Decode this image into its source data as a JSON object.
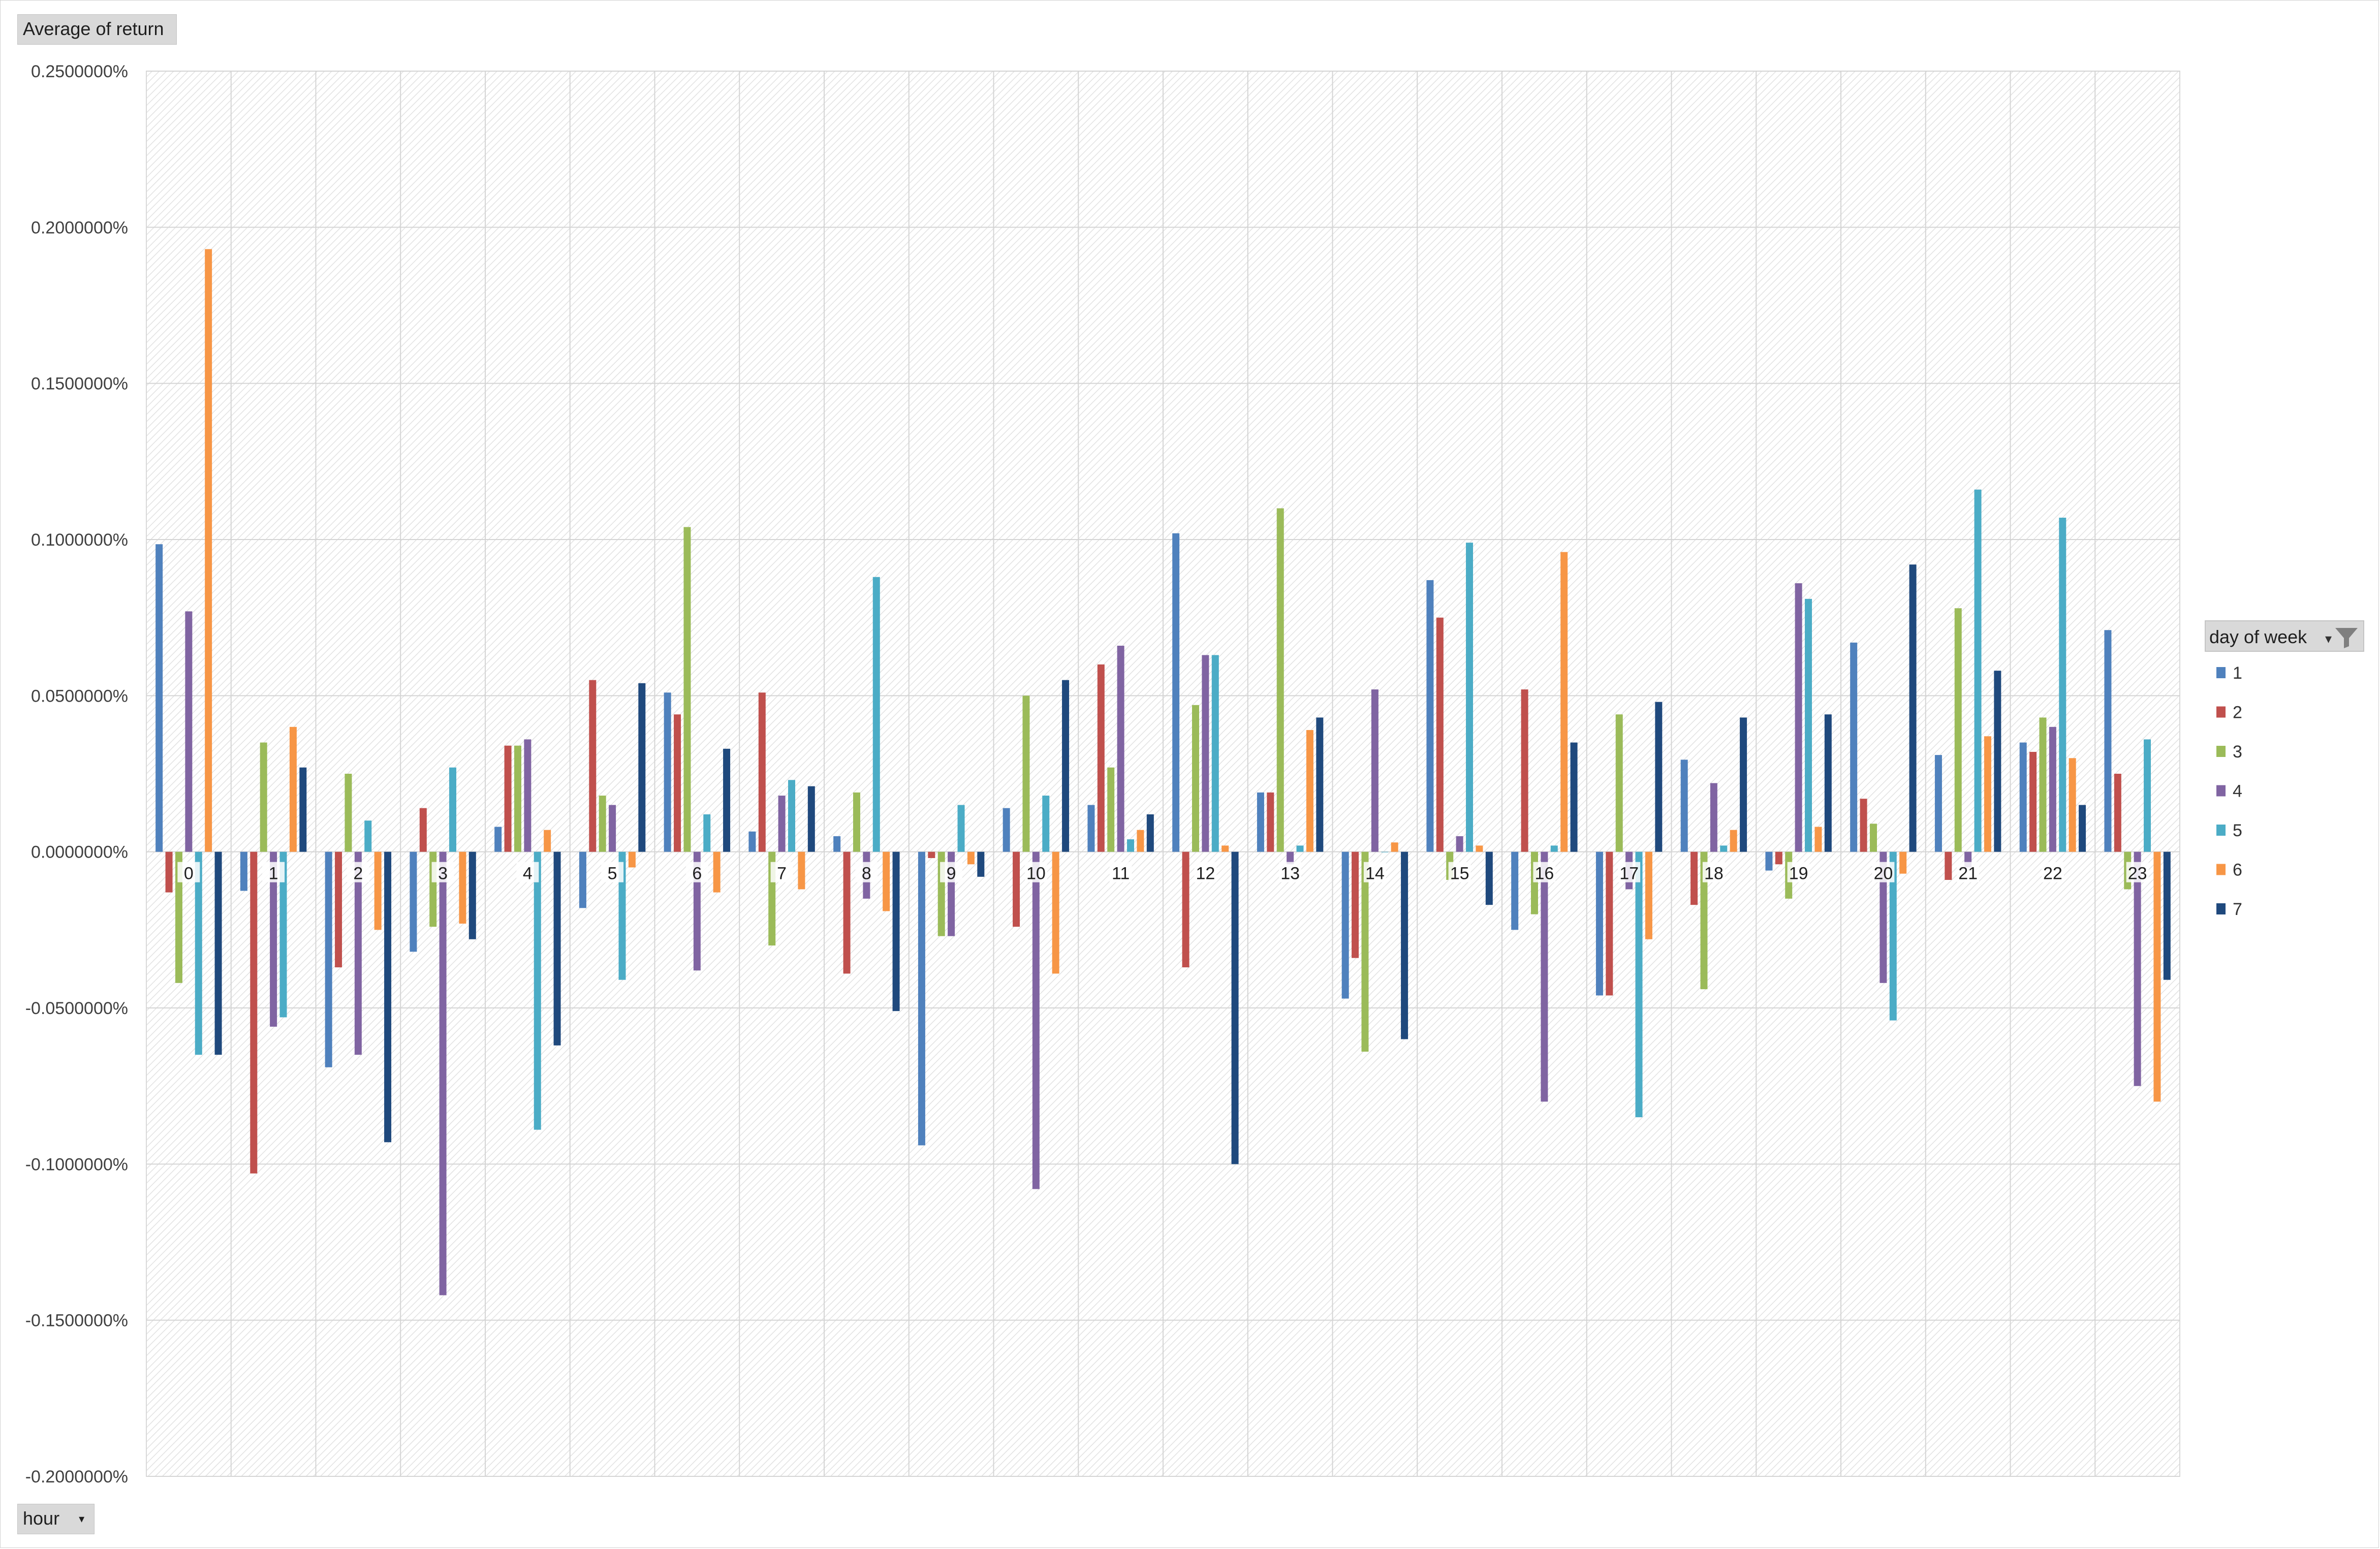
{
  "fields": {
    "values_field": "Average of return",
    "axis_field": "hour",
    "legend_field": "day of week",
    "axis_dropdown_glyph": "▾",
    "legend_dropdown_glyph": "▾"
  },
  "icons": {
    "legend_filter": "filter-icon",
    "axis_dropdown": "chevron-down-icon"
  },
  "chart_data": {
    "type": "bar",
    "title": "",
    "xlabel": "",
    "ylabel": "",
    "ylim": [
      -0.002,
      0.0025
    ],
    "yticks": [
      "0.2500000%",
      "0.2000000%",
      "0.1500000%",
      "0.1000000%",
      "0.0500000%",
      "0.0000000%",
      "-0.0500000%",
      "-0.1000000%",
      "-0.1500000%",
      "-0.2000000%"
    ],
    "grid": true,
    "legend_position": "right",
    "categories": [
      "0",
      "1",
      "2",
      "3",
      "4",
      "5",
      "6",
      "7",
      "8",
      "9",
      "10",
      "11",
      "12",
      "13",
      "14",
      "15",
      "16",
      "17",
      "18",
      "19",
      "20",
      "21",
      "22",
      "23"
    ],
    "series": [
      {
        "name": "1",
        "color": "#4f81bd",
        "values": [
          0.000985,
          -0.000125,
          -0.00069,
          -0.00032,
          8e-05,
          -0.00018,
          0.00051,
          6.5e-05,
          5e-05,
          -0.00094,
          0.00014,
          0.00015,
          0.00102,
          0.00019,
          -0.00047,
          0.00087,
          -0.00025,
          -0.00046,
          0.000295,
          -6e-05,
          0.00067,
          0.00031,
          0.00035,
          0.00071
        ]
      },
      {
        "name": "2",
        "color": "#c0504d",
        "values": [
          -0.00013,
          -0.00103,
          -0.00037,
          0.00014,
          0.00034,
          0.00055,
          0.00044,
          0.00051,
          -0.00039,
          -2e-05,
          -0.00024,
          0.0006,
          -0.00037,
          0.00019,
          -0.00034,
          0.00075,
          0.00052,
          -0.00046,
          -0.00017,
          -4e-05,
          0.00017,
          -9e-05,
          0.00032,
          0.00025
        ]
      },
      {
        "name": "3",
        "color": "#9bbb59",
        "values": [
          -0.00042,
          0.00035,
          0.00025,
          -0.00024,
          0.00034,
          0.00018,
          0.00104,
          -0.0003,
          0.00019,
          -0.00027,
          0.0005,
          0.00027,
          0.00047,
          0.0011,
          -0.00064,
          -9e-05,
          -0.0002,
          0.00044,
          -0.00044,
          -0.00015,
          9e-05,
          0.00078,
          0.00043,
          -0.00012
        ]
      },
      {
        "name": "4",
        "color": "#8064a2",
        "values": [
          0.00077,
          -0.00056,
          -0.00065,
          -0.00142,
          0.00036,
          0.00015,
          -0.00038,
          0.00018,
          -0.00015,
          -0.00027,
          -0.00108,
          0.00066,
          0.00063,
          -4e-05,
          0.00052,
          5e-05,
          -0.0008,
          -0.00012,
          0.00022,
          0.00086,
          -0.00042,
          -5e-05,
          0.0004,
          -0.00075
        ]
      },
      {
        "name": "5",
        "color": "#4bacc6",
        "values": [
          -0.00065,
          -0.00053,
          0.0001,
          0.00027,
          -0.00089,
          -0.00041,
          0.00012,
          0.00023,
          0.00088,
          0.00015,
          0.00018,
          4e-05,
          0.00063,
          2e-05,
          0.0,
          0.00099,
          2e-05,
          -0.00085,
          2e-05,
          0.00081,
          -0.00054,
          0.00116,
          0.00107,
          0.00036
        ]
      },
      {
        "name": "6",
        "color": "#f79646",
        "values": [
          0.00193,
          0.0004,
          -0.00025,
          -0.00023,
          7e-05,
          -5e-05,
          -0.00013,
          -0.00012,
          -0.00019,
          -4e-05,
          -0.00039,
          7e-05,
          2e-05,
          0.00039,
          3e-05,
          2e-05,
          0.00096,
          -0.00028,
          7e-05,
          8e-05,
          -7e-05,
          0.00037,
          0.0003,
          -0.0008
        ]
      },
      {
        "name": "7",
        "color": "#1f497d",
        "values": [
          -0.00065,
          0.00027,
          -0.00093,
          -0.00028,
          -0.00062,
          0.00054,
          0.00033,
          0.00021,
          -0.00051,
          -8e-05,
          0.00055,
          0.00012,
          -0.001,
          0.00043,
          -0.0006,
          -0.00017,
          0.00035,
          0.00048,
          0.00043,
          0.00044,
          0.00092,
          0.00058,
          0.00015,
          -0.00041
        ]
      }
    ]
  }
}
